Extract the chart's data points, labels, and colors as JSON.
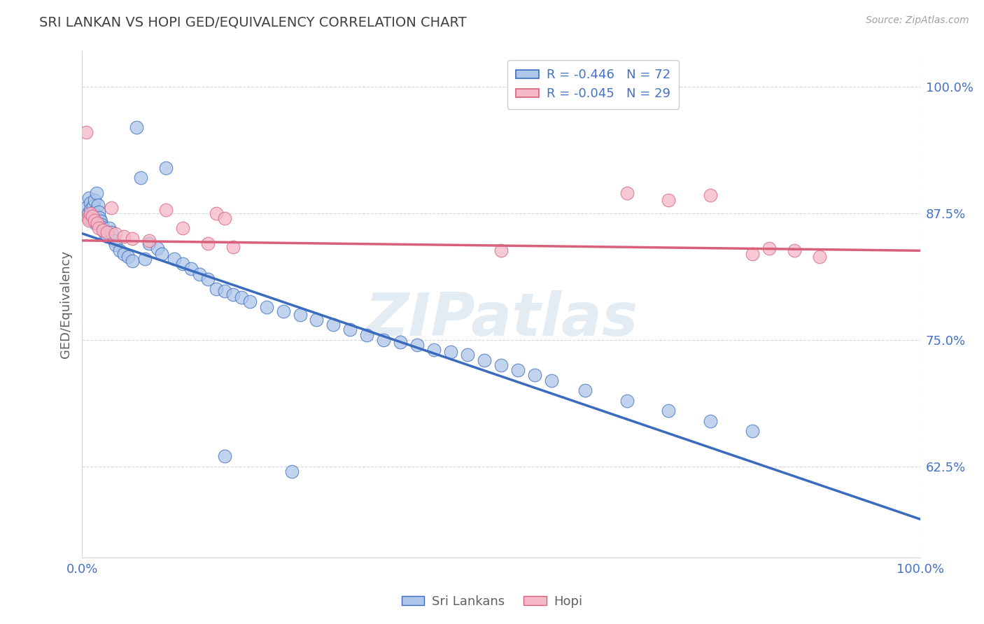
{
  "title": "SRI LANKAN VS HOPI GED/EQUIVALENCY CORRELATION CHART",
  "source": "Source: ZipAtlas.com",
  "ylabel": "GED/Equivalency",
  "legend_labels": [
    "Sri Lankans",
    "Hopi"
  ],
  "blue_R": -0.446,
  "blue_N": 72,
  "pink_R": -0.045,
  "pink_N": 29,
  "blue_color": "#aec6e8",
  "pink_color": "#f4b8c8",
  "blue_line_color": "#3a6bbf",
  "pink_line_color": "#d9607a",
  "title_color": "#404040",
  "axis_label_color": "#4472c4",
  "watermark": "ZIPatlas",
  "ylim": [
    0.535,
    1.035
  ],
  "xlim": [
    0.0,
    1.0
  ],
  "yticks": [
    0.625,
    0.75,
    0.875,
    1.0
  ],
  "ytick_labels": [
    "62.5%",
    "75.0%",
    "87.5%",
    "100.0%"
  ],
  "blue_line_x0": 0.0,
  "blue_line_y0": 0.855,
  "blue_line_x1": 1.0,
  "blue_line_y1": 0.573,
  "pink_line_x0": 0.0,
  "pink_line_y0": 0.848,
  "pink_line_x1": 1.0,
  "pink_line_y1": 0.838,
  "blue_scatter_x": [
    0.005,
    0.007,
    0.008,
    0.009,
    0.01,
    0.01,
    0.011,
    0.012,
    0.013,
    0.014,
    0.015,
    0.016,
    0.017,
    0.018,
    0.019,
    0.02,
    0.021,
    0.022,
    0.023,
    0.025,
    0.027,
    0.03,
    0.032,
    0.035,
    0.038,
    0.04,
    0.045,
    0.05,
    0.055,
    0.06,
    0.065,
    0.07,
    0.075,
    0.08,
    0.09,
    0.095,
    0.1,
    0.11,
    0.12,
    0.13,
    0.14,
    0.15,
    0.16,
    0.17,
    0.18,
    0.19,
    0.2,
    0.22,
    0.24,
    0.26,
    0.28,
    0.3,
    0.32,
    0.34,
    0.36,
    0.38,
    0.4,
    0.42,
    0.44,
    0.46,
    0.48,
    0.5,
    0.52,
    0.54,
    0.56,
    0.6,
    0.65,
    0.7,
    0.75,
    0.8,
    0.17,
    0.25
  ],
  "blue_scatter_y": [
    0.88,
    0.875,
    0.89,
    0.87,
    0.885,
    0.878,
    0.872,
    0.868,
    0.882,
    0.876,
    0.888,
    0.865,
    0.895,
    0.87,
    0.883,
    0.876,
    0.871,
    0.867,
    0.864,
    0.861,
    0.855,
    0.852,
    0.86,
    0.856,
    0.848,
    0.844,
    0.838,
    0.835,
    0.832,
    0.828,
    0.96,
    0.91,
    0.83,
    0.845,
    0.84,
    0.835,
    0.92,
    0.83,
    0.825,
    0.82,
    0.815,
    0.81,
    0.8,
    0.798,
    0.795,
    0.792,
    0.788,
    0.782,
    0.778,
    0.775,
    0.77,
    0.765,
    0.76,
    0.755,
    0.75,
    0.748,
    0.745,
    0.74,
    0.738,
    0.735,
    0.73,
    0.725,
    0.72,
    0.715,
    0.71,
    0.7,
    0.69,
    0.68,
    0.67,
    0.66,
    0.635,
    0.62
  ],
  "pink_scatter_x": [
    0.005,
    0.007,
    0.008,
    0.01,
    0.012,
    0.015,
    0.018,
    0.02,
    0.025,
    0.03,
    0.035,
    0.04,
    0.05,
    0.06,
    0.08,
    0.1,
    0.12,
    0.15,
    0.16,
    0.17,
    0.18,
    0.5,
    0.65,
    0.7,
    0.75,
    0.8,
    0.82,
    0.85,
    0.88
  ],
  "pink_scatter_y": [
    0.955,
    0.87,
    0.868,
    0.875,
    0.872,
    0.868,
    0.865,
    0.86,
    0.858,
    0.856,
    0.88,
    0.855,
    0.852,
    0.85,
    0.848,
    0.878,
    0.86,
    0.845,
    0.875,
    0.87,
    0.842,
    0.838,
    0.895,
    0.888,
    0.893,
    0.835,
    0.84,
    0.838,
    0.832
  ]
}
